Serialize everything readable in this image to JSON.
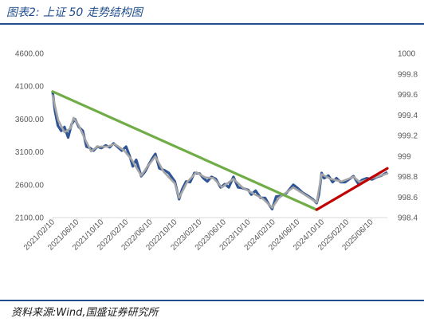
{
  "header": {
    "title": "图表2:  上证 50 走势结构图"
  },
  "footer": {
    "source": "资料来源:Wind,国盛证券研究所"
  },
  "colors": {
    "accent": "#1f4e8c",
    "series_main": "#2f5597",
    "series_smooth": "#a6a6a6",
    "trend_down": "#70ad47",
    "trend_up": "#c00000"
  },
  "chart_data": {
    "type": "line",
    "title": "",
    "y_left": {
      "min": 2100,
      "max": 4600,
      "ticks": [
        "2100.00",
        "2600.00",
        "3100.00",
        "3600.00",
        "4100.00",
        "4600.00"
      ]
    },
    "y_right": {
      "min": 998.4,
      "max": 1000,
      "ticks": [
        "998.4",
        "998.6",
        "998.8",
        "999",
        "999.2",
        "999.4",
        "999.6",
        "999.8",
        "1000"
      ]
    },
    "x_ticks": [
      "2021/02/10",
      "2021/06/10",
      "2021/10/10",
      "2022/02/10",
      "2022/06/10",
      "2022/10/10",
      "2023/02/10",
      "2023/06/10",
      "2023/10/10",
      "2024/02/10",
      "2024/06/10",
      "2024/10/10",
      "2025/02/10",
      "2025/06/10"
    ],
    "x_domain": [
      "2021/02/10",
      "2025/08/30"
    ],
    "series": [
      {
        "role": "index",
        "points": [
          [
            "2021/02/10",
            4020
          ],
          [
            "2021/02/22",
            3720
          ],
          [
            "2021/03/08",
            3500
          ],
          [
            "2021/03/25",
            3420
          ],
          [
            "2021/04/10",
            3480
          ],
          [
            "2021/04/28",
            3320
          ],
          [
            "2021/05/15",
            3520
          ],
          [
            "2021/06/01",
            3600
          ],
          [
            "2021/06/20",
            3480
          ],
          [
            "2021/07/10",
            3420
          ],
          [
            "2021/07/28",
            3180
          ],
          [
            "2021/08/15",
            3160
          ],
          [
            "2021/09/01",
            3120
          ],
          [
            "2021/09/20",
            3180
          ],
          [
            "2021/10/10",
            3160
          ],
          [
            "2021/11/01",
            3200
          ],
          [
            "2021/11/20",
            3170
          ],
          [
            "2021/12/10",
            3230
          ],
          [
            "2022/01/01",
            3170
          ],
          [
            "2022/01/20",
            3120
          ],
          [
            "2022/02/10",
            3180
          ],
          [
            "2022/03/01",
            3030
          ],
          [
            "2022/03/15",
            2880
          ],
          [
            "2022/04/01",
            2980
          ],
          [
            "2022/04/26",
            2730
          ],
          [
            "2022/05/15",
            2800
          ],
          [
            "2022/06/01",
            2900
          ],
          [
            "2022/06/20",
            3000
          ],
          [
            "2022/07/05",
            3070
          ],
          [
            "2022/07/25",
            2850
          ],
          [
            "2022/08/20",
            2820
          ],
          [
            "2022/09/10",
            2780
          ],
          [
            "2022/10/10",
            2650
          ],
          [
            "2022/10/31",
            2380
          ],
          [
            "2022/11/15",
            2530
          ],
          [
            "2022/12/05",
            2650
          ],
          [
            "2022/12/25",
            2640
          ],
          [
            "2023/01/15",
            2780
          ],
          [
            "2023/02/10",
            2770
          ],
          [
            "2023/03/01",
            2700
          ],
          [
            "2023/03/20",
            2650
          ],
          [
            "2023/04/10",
            2720
          ],
          [
            "2023/05/01",
            2690
          ],
          [
            "2023/05/25",
            2560
          ],
          [
            "2023/06/15",
            2610
          ],
          [
            "2023/07/05",
            2560
          ],
          [
            "2023/07/28",
            2720
          ],
          [
            "2023/08/20",
            2560
          ],
          [
            "2023/09/10",
            2550
          ],
          [
            "2023/10/10",
            2520
          ],
          [
            "2023/10/25",
            2450
          ],
          [
            "2023/11/15",
            2510
          ],
          [
            "2023/12/10",
            2400
          ],
          [
            "2024/01/01",
            2400
          ],
          [
            "2024/01/20",
            2300
          ],
          [
            "2024/02/05",
            2230
          ],
          [
            "2024/02/25",
            2420
          ],
          [
            "2024/03/20",
            2430
          ],
          [
            "2024/04/15",
            2470
          ],
          [
            "2024/05/20",
            2600
          ],
          [
            "2024/06/10",
            2550
          ],
          [
            "2024/07/05",
            2480
          ],
          [
            "2024/08/01",
            2430
          ],
          [
            "2024/08/25",
            2380
          ],
          [
            "2024/09/13",
            2320
          ],
          [
            "2024/09/24",
            2450
          ],
          [
            "2024/10/08",
            2780
          ],
          [
            "2024/10/20",
            2700
          ],
          [
            "2024/11/10",
            2740
          ],
          [
            "2024/12/01",
            2640
          ],
          [
            "2024/12/20",
            2700
          ],
          [
            "2025/01/10",
            2640
          ],
          [
            "2025/02/01",
            2640
          ],
          [
            "2025/02/20",
            2680
          ],
          [
            "2025/03/15",
            2730
          ],
          [
            "2025/04/07",
            2620
          ],
          [
            "2025/04/25",
            2670
          ],
          [
            "2025/05/20",
            2700
          ],
          [
            "2025/06/15",
            2680
          ],
          [
            "2025/07/10",
            2720
          ],
          [
            "2025/08/01",
            2740
          ],
          [
            "2025/08/30",
            2790
          ]
        ]
      },
      {
        "role": "smoothed",
        "points": [
          [
            "2021/02/10",
            3960
          ],
          [
            "2021/03/10",
            3580
          ],
          [
            "2021/04/10",
            3400
          ],
          [
            "2021/05/10",
            3460
          ],
          [
            "2021/05/25",
            3620
          ],
          [
            "2021/06/20",
            3500
          ],
          [
            "2021/07/20",
            3300
          ],
          [
            "2021/08/20",
            3110
          ],
          [
            "2021/09/20",
            3180
          ],
          [
            "2021/11/10",
            3180
          ],
          [
            "2021/12/15",
            3220
          ],
          [
            "2022/02/01",
            3120
          ],
          [
            "2022/03/10",
            2980
          ],
          [
            "2022/04/26",
            2740
          ],
          [
            "2022/05/25",
            2870
          ],
          [
            "2022/07/05",
            3030
          ],
          [
            "2022/08/15",
            2800
          ],
          [
            "2022/10/10",
            2620
          ],
          [
            "2022/10/31",
            2400
          ],
          [
            "2022/12/10",
            2640
          ],
          [
            "2023/01/25",
            2790
          ],
          [
            "2023/03/10",
            2710
          ],
          [
            "2023/04/20",
            2700
          ],
          [
            "2023/06/01",
            2560
          ],
          [
            "2023/07/28",
            2690
          ],
          [
            "2023/09/10",
            2560
          ],
          [
            "2023/11/01",
            2470
          ],
          [
            "2023/12/20",
            2390
          ],
          [
            "2024/02/05",
            2250
          ],
          [
            "2024/03/10",
            2400
          ],
          [
            "2024/05/20",
            2560
          ],
          [
            "2024/07/20",
            2440
          ],
          [
            "2024/09/13",
            2330
          ],
          [
            "2024/10/08",
            2760
          ],
          [
            "2024/11/20",
            2690
          ],
          [
            "2025/01/15",
            2650
          ],
          [
            "2025/03/15",
            2720
          ],
          [
            "2025/04/15",
            2640
          ],
          [
            "2025/06/15",
            2700
          ],
          [
            "2025/08/30",
            2770
          ]
        ]
      }
    ],
    "trend_lines": [
      {
        "role": "down",
        "from": [
          "2021/02/10",
          4020
        ],
        "to": [
          "2024/09/13",
          2220
        ]
      },
      {
        "role": "up",
        "from": [
          "2024/09/13",
          2220
        ],
        "to": [
          "2025/08/30",
          2850
        ]
      }
    ]
  }
}
